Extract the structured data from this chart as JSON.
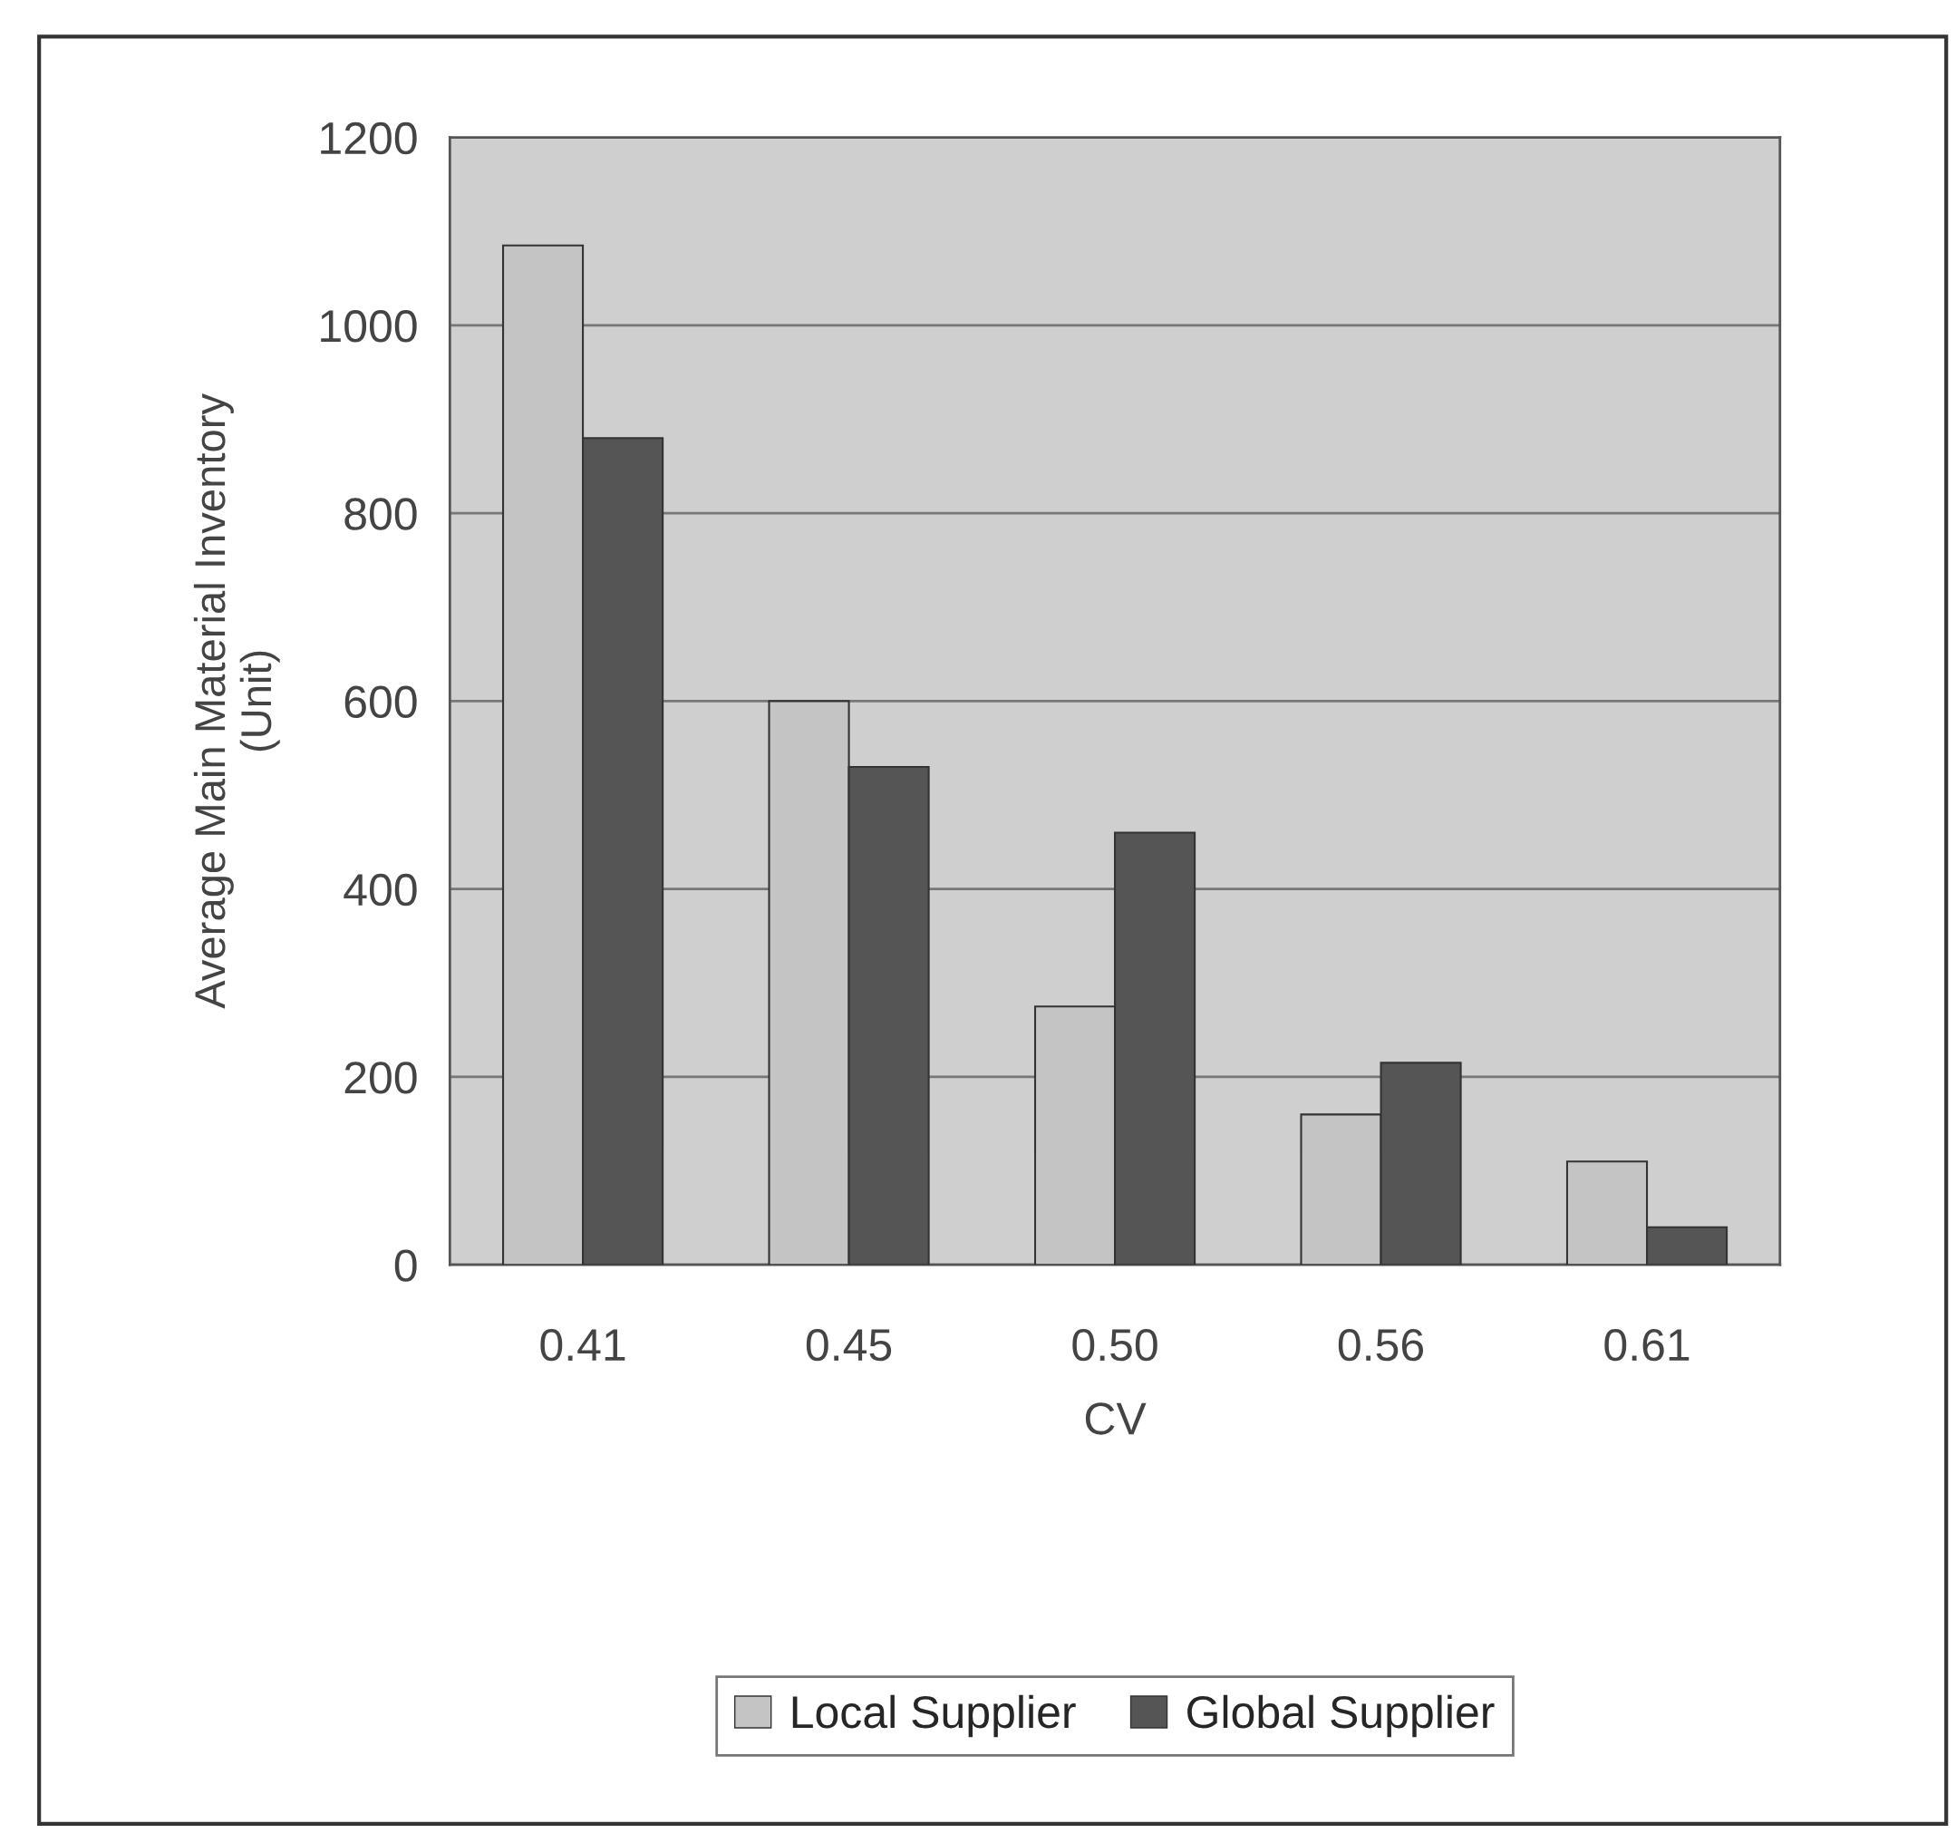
{
  "chart_data": {
    "type": "bar",
    "xlabel": "CV",
    "ylabel": "Average Main Material Inventory\n(Unit)",
    "categories": [
      "0.41",
      "0.45",
      "0.50",
      "0.56",
      "0.61"
    ],
    "series": [
      {
        "name": "Local Supplier",
        "color": "#c4c4c4",
        "values": [
          1085,
          600,
          275,
          160,
          110
        ]
      },
      {
        "name": "Global Supplier",
        "color": "#555555",
        "values": [
          880,
          530,
          460,
          215,
          40
        ]
      }
    ],
    "ylim": [
      0,
      1200
    ],
    "yticks": [
      0,
      200,
      400,
      600,
      800,
      1000,
      1200
    ],
    "grid": "y",
    "legend": "bottom"
  }
}
